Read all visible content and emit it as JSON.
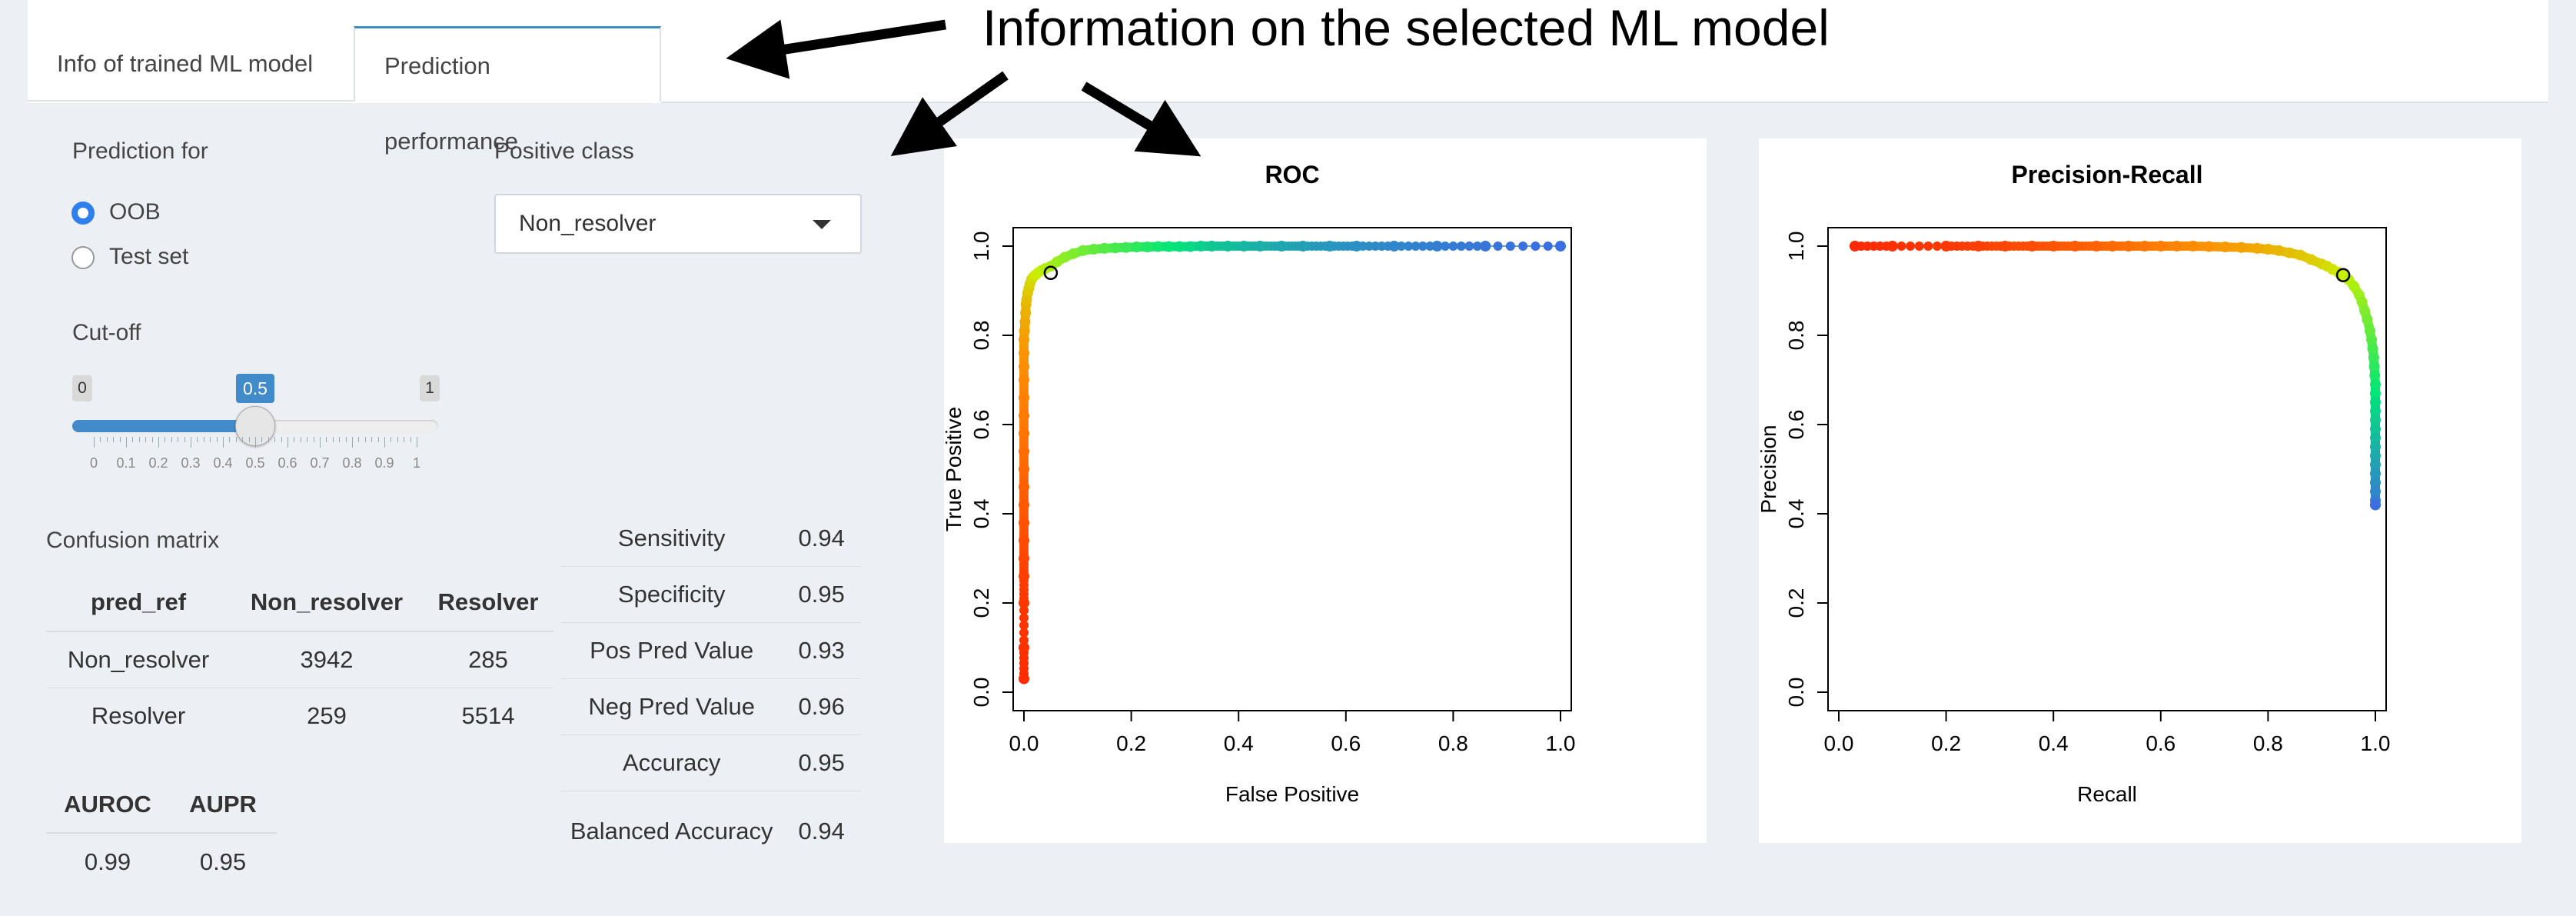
{
  "tabs": [
    {
      "label": "Info of trained ML model",
      "active": false
    },
    {
      "label": "Prediction performance",
      "active": true
    }
  ],
  "controls": {
    "prediction_for_label": "Prediction for",
    "options": [
      {
        "label": "OOB",
        "selected": true
      },
      {
        "label": "Test set",
        "selected": false
      }
    ],
    "positive_class_label": "Positive class",
    "positive_class_value": "Non_resolver",
    "cutoff_label": "Cut-off",
    "slider": {
      "min": "0",
      "max": "1",
      "value": "0.5",
      "value_fraction": 0.5,
      "ticks": [
        "0",
        "0.1",
        "0.2",
        "0.3",
        "0.4",
        "0.5",
        "0.6",
        "0.7",
        "0.8",
        "0.9",
        "1"
      ]
    }
  },
  "confusion": {
    "title": "Confusion matrix",
    "headers": [
      "pred_ref",
      "Non_resolver",
      "Resolver"
    ],
    "rows": [
      [
        "Non_resolver",
        "3942",
        "285"
      ],
      [
        "Resolver",
        "259",
        "5514"
      ]
    ]
  },
  "auc": {
    "headers": [
      "AUROC",
      "AUPR"
    ],
    "values": [
      "0.99",
      "0.95"
    ]
  },
  "stats": [
    {
      "label": "Sensitivity",
      "value": "0.94"
    },
    {
      "label": "Specificity",
      "value": "0.95"
    },
    {
      "label": "Pos Pred Value",
      "value": "0.93"
    },
    {
      "label": "Neg Pred Value",
      "value": "0.96"
    },
    {
      "label": "Accuracy",
      "value": "0.95"
    },
    {
      "label": "Balanced Accuracy",
      "value": "0.94"
    }
  ],
  "annotation": "Information on the selected ML model",
  "chart_data": [
    {
      "type": "line",
      "title": "ROC",
      "xlabel": "False Positive",
      "ylabel": "True Positive",
      "xlim": [
        0,
        1
      ],
      "ylim": [
        0,
        1
      ],
      "xticks": [
        "0.0",
        "0.2",
        "0.4",
        "0.6",
        "0.8",
        "1.0"
      ],
      "yticks": [
        "0.0",
        "0.2",
        "0.4",
        "0.6",
        "0.8",
        "1.0"
      ],
      "colors": {
        "low": "#ff2a00",
        "mid": "#c8f000",
        "high": "#3b6ee0"
      },
      "highlight_point": {
        "x": 0.05,
        "y": 0.94
      },
      "series": [
        {
          "x": [
            0,
            0,
            0,
            0,
            0,
            0,
            0,
            0,
            0,
            0,
            0,
            0,
            0,
            0,
            0,
            0,
            0,
            0,
            0.001,
            0.002,
            0.003,
            0.004,
            0.005,
            0.007,
            0.009,
            0.011,
            0.014,
            0.017,
            0.021,
            0.026,
            0.032,
            0.04,
            0.05,
            0.062,
            0.076,
            0.092,
            0.11,
            0.13,
            0.15,
            0.17,
            0.19,
            0.21,
            0.23,
            0.25,
            0.27,
            0.29,
            0.31,
            0.33,
            0.35,
            0.38,
            0.41,
            0.44,
            0.48,
            0.52,
            0.57,
            0.62,
            0.69,
            0.77,
            0.86,
            1.0
          ],
          "y": [
            0.03,
            0.1,
            0.2,
            0.26,
            0.3,
            0.34,
            0.38,
            0.42,
            0.46,
            0.5,
            0.54,
            0.58,
            0.62,
            0.66,
            0.7,
            0.73,
            0.76,
            0.79,
            0.81,
            0.83,
            0.85,
            0.87,
            0.88,
            0.895,
            0.905,
            0.915,
            0.925,
            0.93,
            0.935,
            0.94,
            0.945,
            0.95,
            0.955,
            0.965,
            0.975,
            0.983,
            0.99,
            0.993,
            0.995,
            0.996,
            0.997,
            0.998,
            0.998,
            0.999,
            0.999,
            0.999,
            0.999,
            1,
            1,
            1,
            1,
            1,
            1,
            1,
            1,
            1,
            1,
            1,
            1,
            1
          ]
        }
      ]
    },
    {
      "type": "line",
      "title": "Precision-Recall",
      "xlabel": "Recall",
      "ylabel": "Precision",
      "xlim": [
        0,
        1
      ],
      "ylim": [
        0,
        1
      ],
      "xticks": [
        "0.0",
        "0.2",
        "0.4",
        "0.6",
        "0.8",
        "1.0"
      ],
      "yticks": [
        "0.0",
        "0.2",
        "0.4",
        "0.6",
        "0.8",
        "1.0"
      ],
      "colors": {
        "low": "#ff2a00",
        "mid": "#c8f000",
        "high": "#3b6ee0"
      },
      "highlight_point": {
        "x": 0.94,
        "y": 0.935
      },
      "series": [
        {
          "x": [
            0.03,
            0.1,
            0.2,
            0.26,
            0.31,
            0.36,
            0.4,
            0.44,
            0.48,
            0.51,
            0.54,
            0.57,
            0.6,
            0.63,
            0.66,
            0.69,
            0.72,
            0.75,
            0.78,
            0.8,
            0.82,
            0.84,
            0.86,
            0.88,
            0.9,
            0.91,
            0.92,
            0.93,
            0.94,
            0.95,
            0.96,
            0.97,
            0.975,
            0.98,
            0.985,
            0.99,
            0.993,
            0.995,
            0.997,
            0.998,
            0.999,
            1,
            1,
            1,
            1,
            1,
            1,
            1,
            1,
            1,
            1,
            1,
            1,
            1,
            1,
            1,
            1
          ],
          "y": [
            1,
            1,
            1,
            1,
            1,
            1,
            1,
            1,
            1,
            1,
            1,
            1,
            1,
            1,
            1,
            0.999,
            0.998,
            0.997,
            0.995,
            0.993,
            0.99,
            0.985,
            0.98,
            0.97,
            0.96,
            0.955,
            0.948,
            0.942,
            0.935,
            0.925,
            0.91,
            0.89,
            0.875,
            0.855,
            0.835,
            0.81,
            0.79,
            0.77,
            0.75,
            0.73,
            0.71,
            0.69,
            0.67,
            0.65,
            0.63,
            0.61,
            0.59,
            0.57,
            0.55,
            0.53,
            0.51,
            0.49,
            0.47,
            0.45,
            0.43,
            0.42,
            0.42
          ]
        }
      ]
    }
  ]
}
